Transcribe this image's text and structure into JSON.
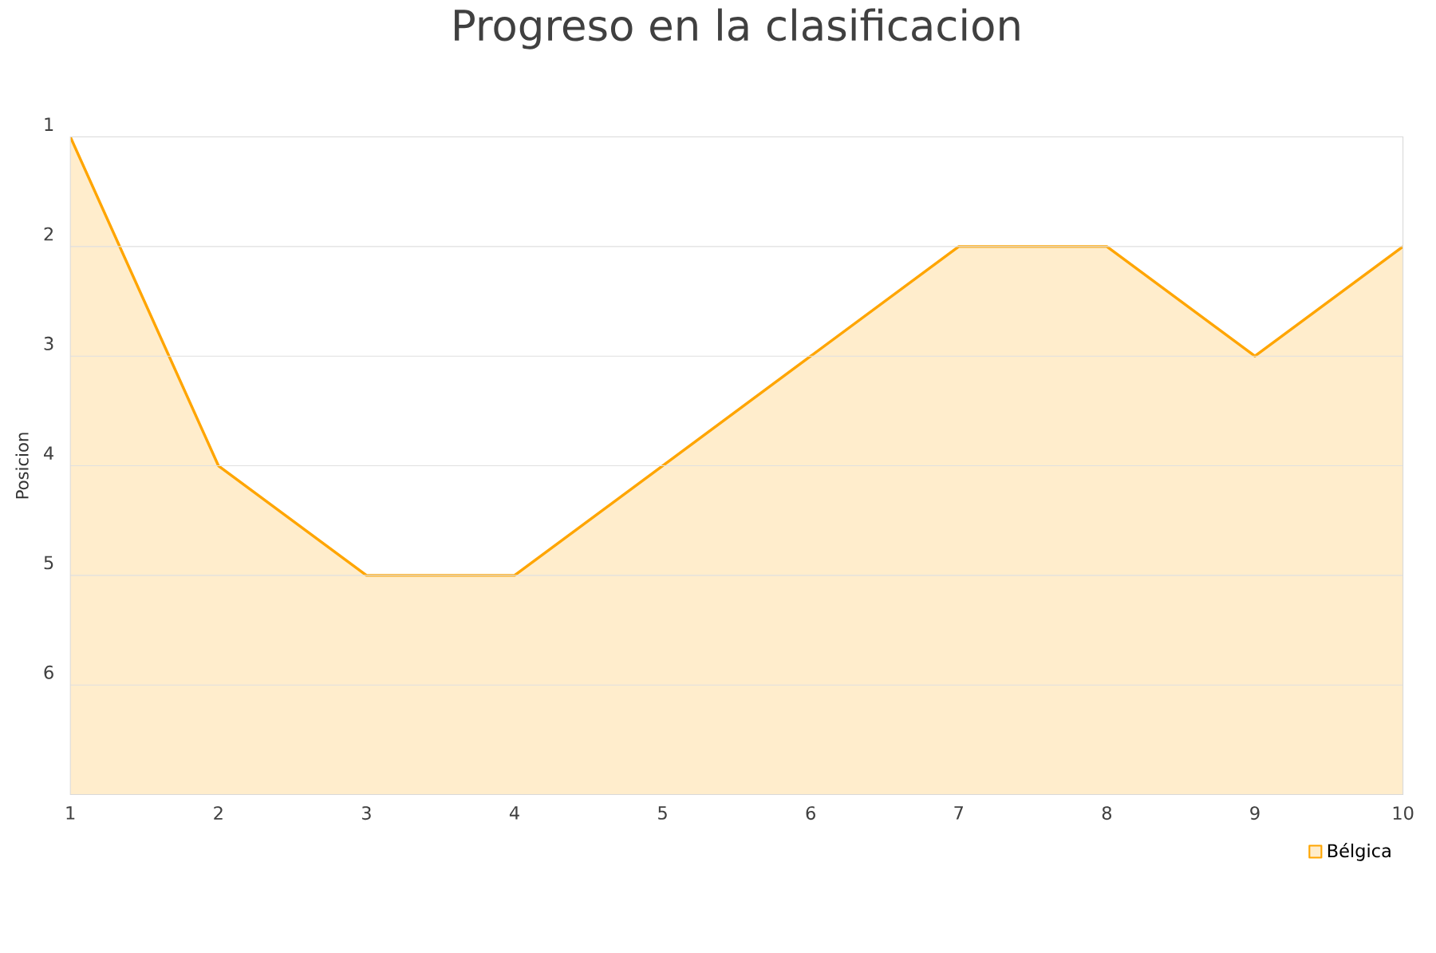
{
  "chart_data": {
    "type": "area",
    "title": "Progreso en la clasificacion",
    "ylabel": "Posicion",
    "x": [
      1,
      2,
      3,
      4,
      5,
      6,
      7,
      8,
      9,
      10
    ],
    "series": [
      {
        "name": "Bélgica",
        "color": "#ffa500",
        "values": [
          1,
          4,
          5,
          5,
          4,
          3,
          2,
          2,
          3,
          2
        ]
      }
    ],
    "xlim": [
      1,
      10
    ],
    "xticks": [
      1,
      2,
      3,
      4,
      5,
      6,
      7,
      8,
      9,
      10
    ],
    "ylim": [
      7,
      1
    ],
    "yticks": [
      1,
      2,
      3,
      4,
      5,
      6
    ],
    "grid": "y",
    "legend": "bottom right",
    "marker": "none",
    "line_style": "solid"
  }
}
